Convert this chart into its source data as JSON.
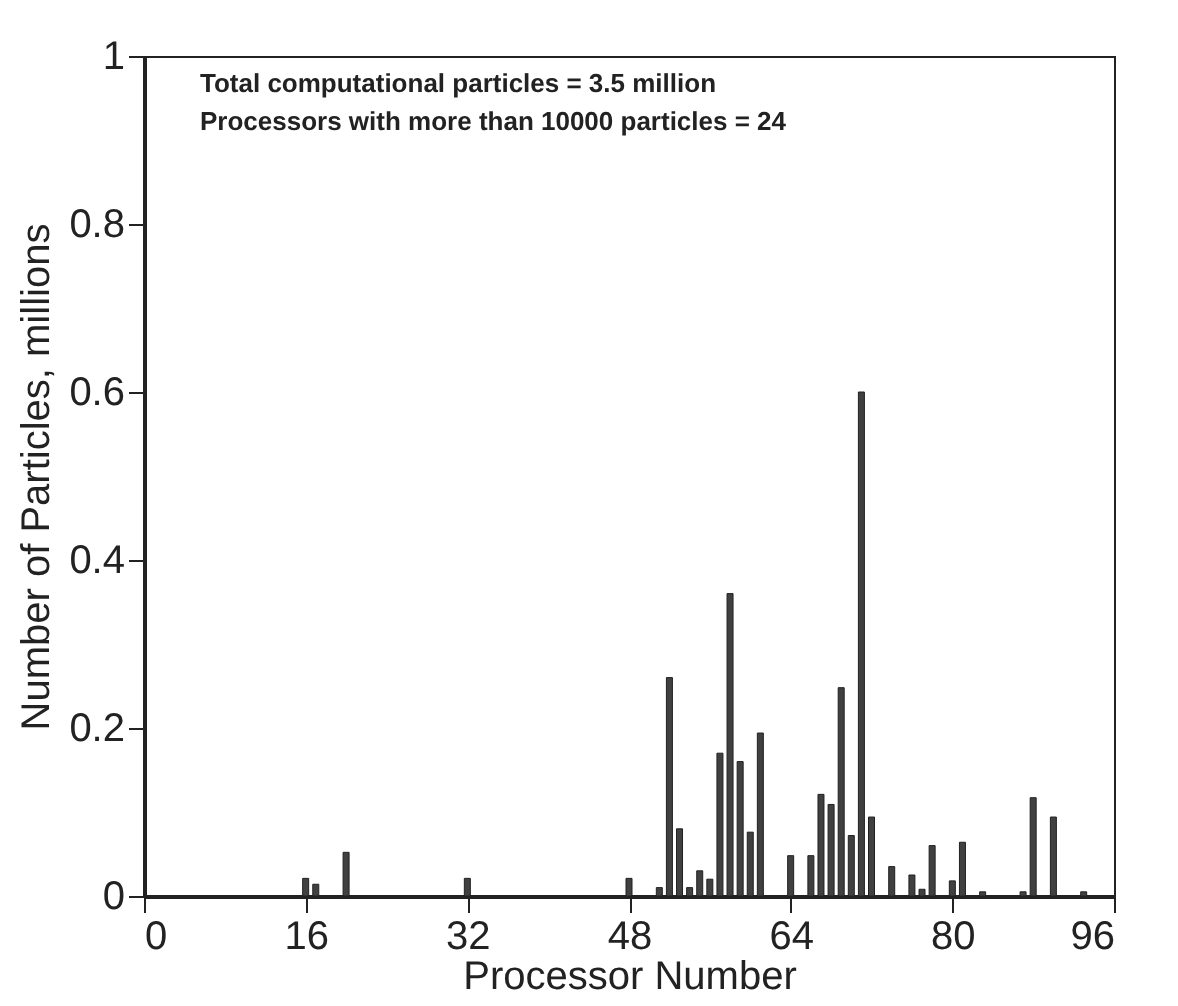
{
  "chart_data": {
    "type": "bar",
    "xlabel": "Processor Number",
    "ylabel": "Number of Particles, millions",
    "annotations": [
      "Total computational particles = 3.5 million",
      "Processors with more than 10000 particles = 24"
    ],
    "x": [
      16,
      17,
      20,
      32,
      48,
      51,
      52,
      53,
      54,
      55,
      56,
      57,
      58,
      59,
      60,
      61,
      64,
      66,
      67,
      68,
      69,
      70,
      71,
      72,
      74,
      76,
      77,
      78,
      80,
      81,
      83,
      87,
      88,
      90,
      93
    ],
    "values": [
      0.021,
      0.014,
      0.052,
      0.021,
      0.021,
      0.01,
      0.26,
      0.08,
      0.01,
      0.03,
      0.02,
      0.17,
      0.36,
      0.16,
      0.076,
      0.194,
      0.048,
      0.048,
      0.121,
      0.109,
      0.248,
      0.072,
      0.6,
      0.094,
      0.035,
      0.025,
      0.008,
      0.06,
      0.018,
      0.064,
      0.005,
      0.005,
      0.117,
      0.094,
      0.005
    ],
    "color": "#404040",
    "xlim": [
      0,
      96
    ],
    "xticks": [
      0,
      16,
      32,
      48,
      64,
      80,
      96
    ],
    "ylim": [
      0,
      1
    ],
    "yticks": [
      0,
      0.2,
      0.4,
      0.6,
      0.8,
      1
    ],
    "grid": false
  }
}
